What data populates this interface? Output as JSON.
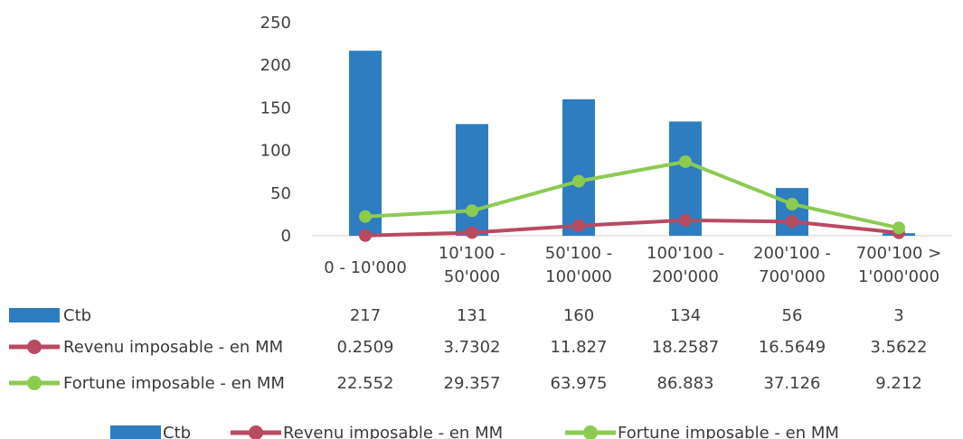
{
  "chart_data": {
    "type": "bar",
    "categories": [
      [
        "0 - 10'000"
      ],
      [
        "10'100 -",
        "50'000"
      ],
      [
        "50'100 -",
        "100'000"
      ],
      [
        "100'100 -",
        "200'000"
      ],
      [
        "200'100 -",
        "700'000"
      ],
      [
        "700'100 >",
        "1'000'000"
      ]
    ],
    "y_ticks": [
      "250",
      "200",
      "150",
      "100",
      "50",
      "0"
    ],
    "ylim": [
      0,
      250
    ],
    "series": [
      {
        "name": "Ctb",
        "kind": "bar",
        "color": "#2E7DC0",
        "values": [
          217,
          131,
          160,
          134,
          56,
          3
        ],
        "table_values": [
          "217",
          "131",
          "160",
          "134",
          "56",
          "3"
        ]
      },
      {
        "name": "Revenu imposable - en MM",
        "kind": "line",
        "color": "#B84A62",
        "values": [
          0.2509,
          3.7302,
          11.827,
          18.2587,
          16.5649,
          3.5622
        ],
        "table_values": [
          "0.2509",
          "3.7302",
          "11.827",
          "18.2587",
          "16.5649",
          "3.5622"
        ]
      },
      {
        "name": "Fortune imposable - en MM",
        "kind": "line",
        "color": "#8CCB52",
        "values": [
          22.552,
          29.357,
          63.975,
          86.883,
          37.126,
          9.212
        ],
        "table_values": [
          "22.552",
          "29.357",
          "63.975",
          "86.883",
          "37.126",
          "9.212"
        ]
      }
    ],
    "legend_position": "bottom",
    "data_table": true
  }
}
